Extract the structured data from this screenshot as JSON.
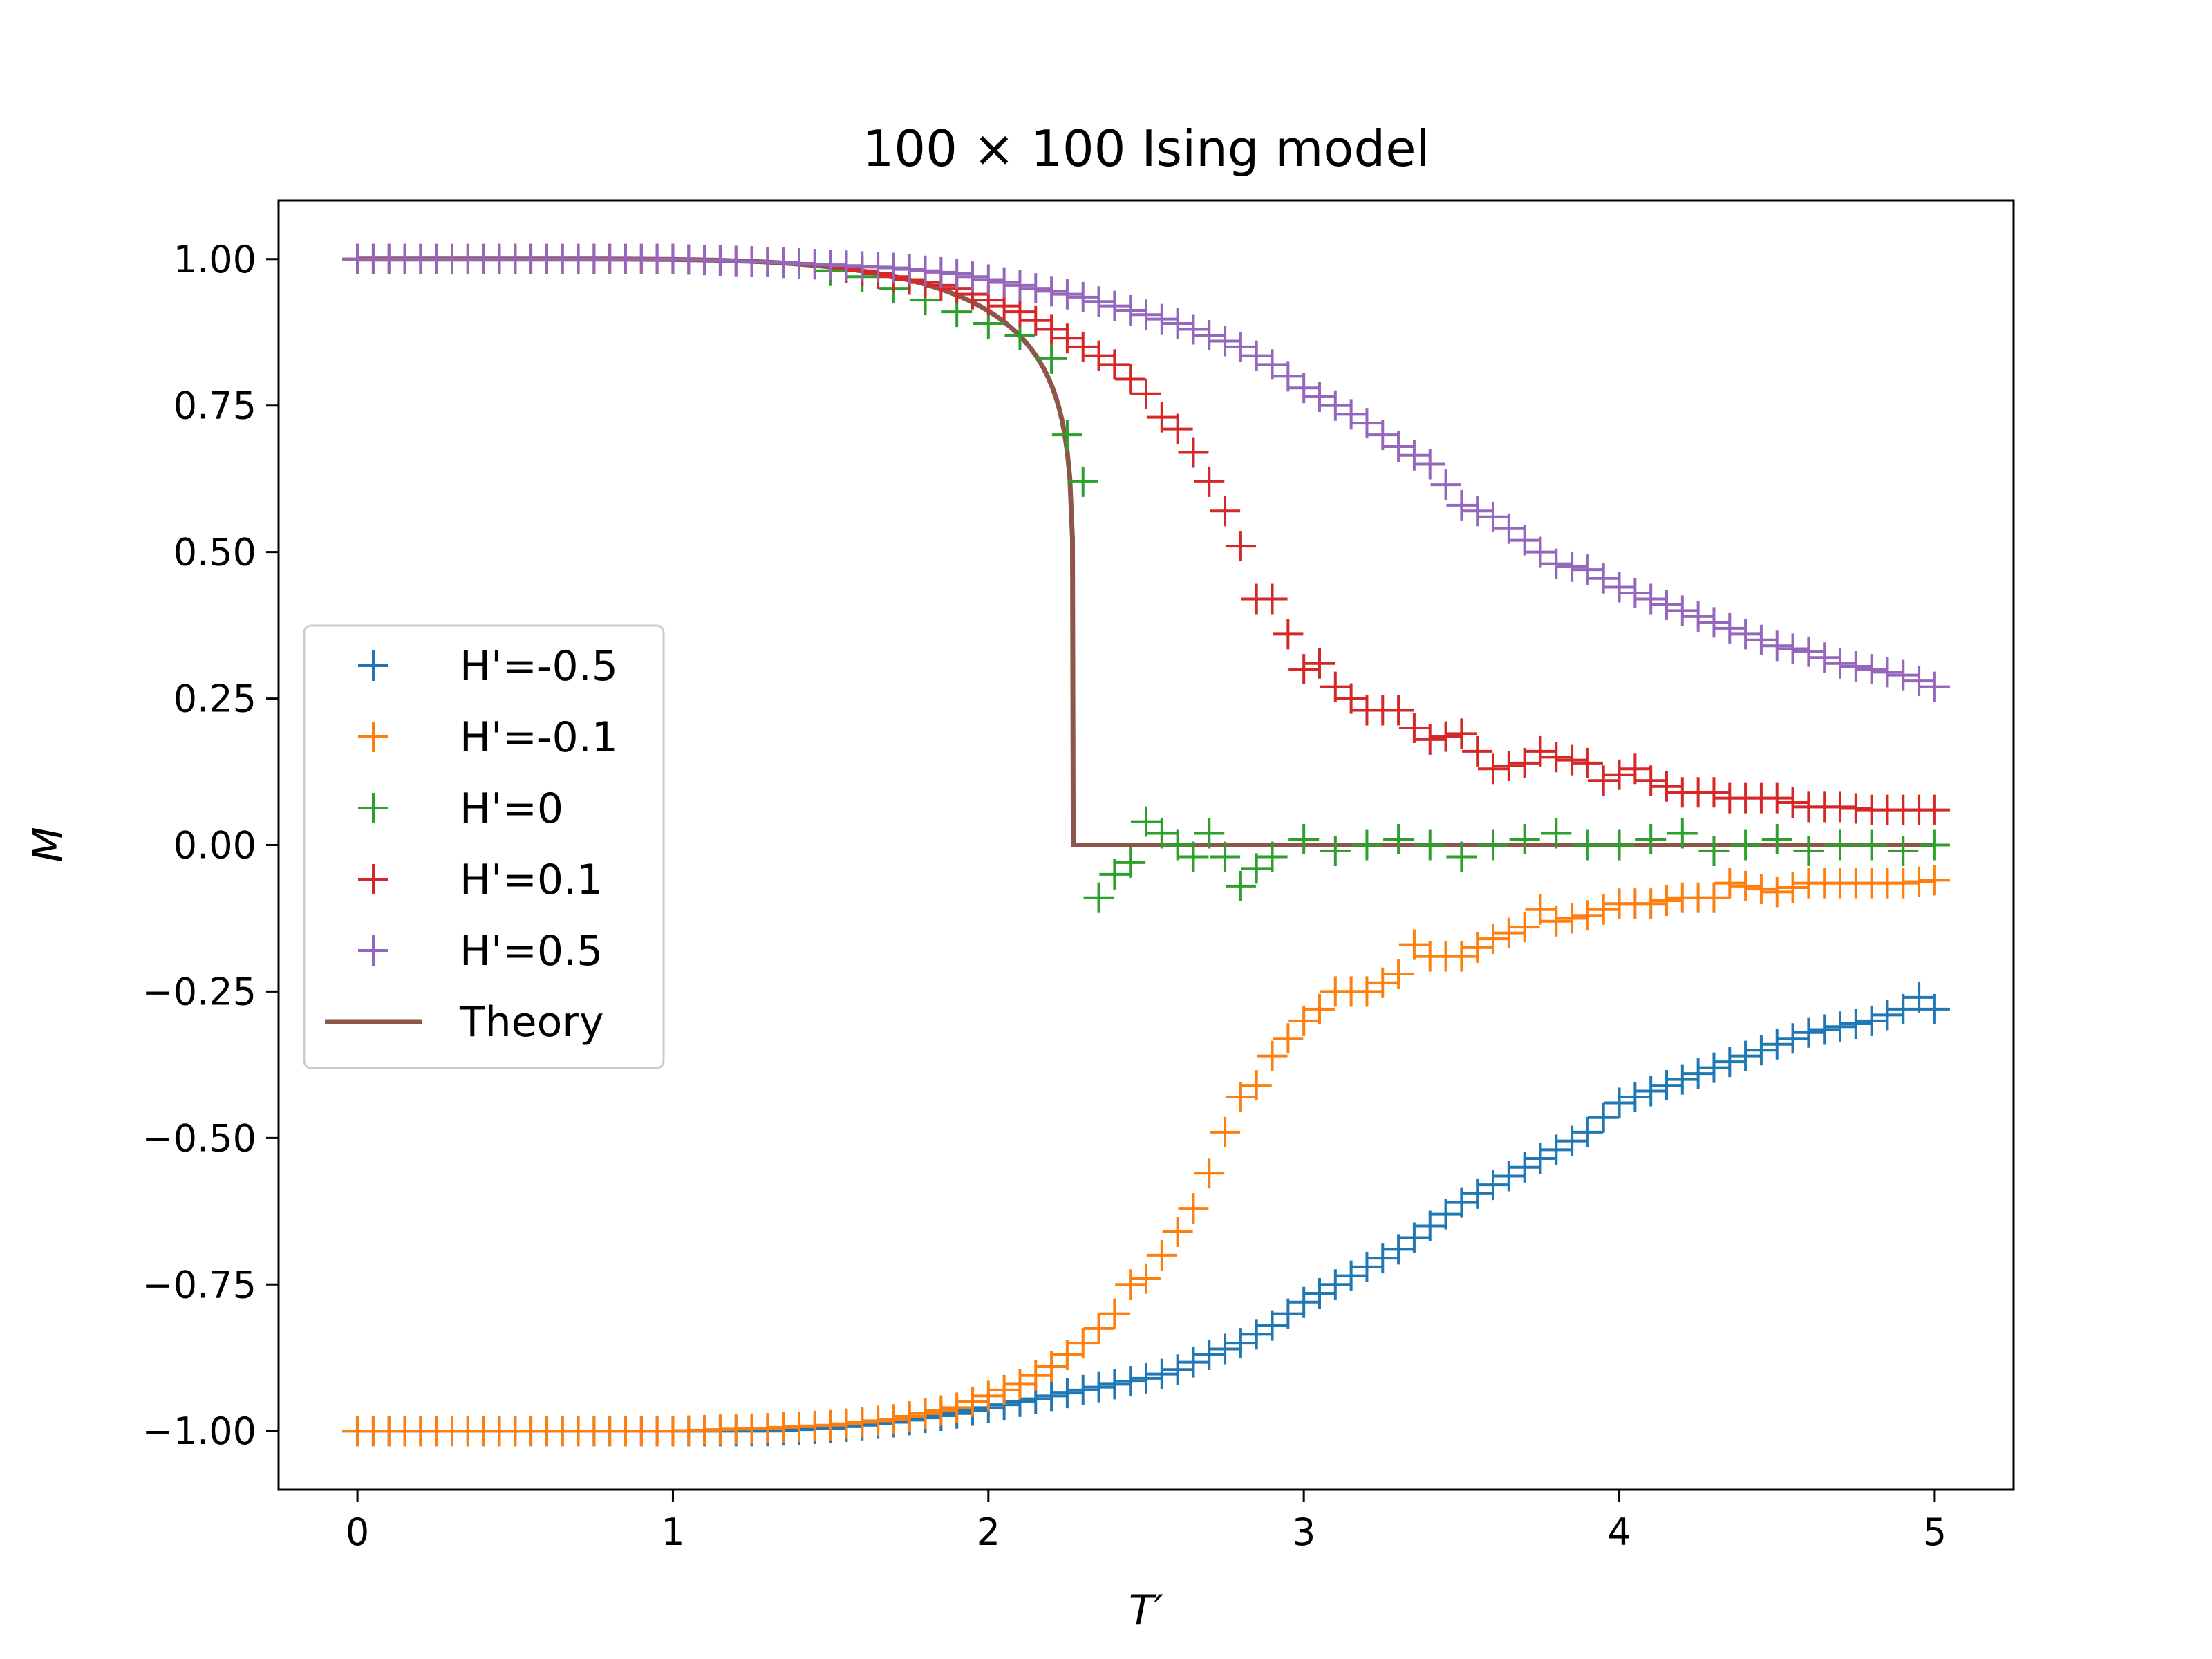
{
  "chart_data": {
    "type": "scatter",
    "title": "100 × 100 Ising model",
    "xlabel": "T′",
    "ylabel": "M",
    "xlim": [
      -0.25,
      5.25
    ],
    "ylim": [
      -1.1,
      1.1
    ],
    "xticks": [
      0,
      1,
      2,
      3,
      4,
      5
    ],
    "xtick_labels": [
      "0",
      "1",
      "2",
      "3",
      "4",
      "5"
    ],
    "yticks": [
      1.0,
      0.75,
      0.5,
      0.25,
      0.0,
      -0.25,
      -0.5,
      -0.75,
      -1.0
    ],
    "ytick_labels": [
      "1.00",
      "0.75",
      "0.50",
      "0.25",
      "0.00",
      "−0.25",
      "−0.50",
      "−0.75",
      "−1.00"
    ],
    "grid": false,
    "legend_position": "center-left",
    "series": [
      {
        "name": "H'=-0.5",
        "color": "#1f77b4",
        "marker": "plus",
        "points": [
          [
            0,
            -1.0
          ],
          [
            0.5,
            -1.0
          ],
          [
            1.0,
            -1.0
          ],
          [
            1.3,
            -1.0
          ],
          [
            1.5,
            -0.995
          ],
          [
            1.7,
            -0.985
          ],
          [
            1.9,
            -0.97
          ],
          [
            2.0,
            -0.96
          ],
          [
            2.1,
            -0.95
          ],
          [
            2.2,
            -0.94
          ],
          [
            2.3,
            -0.93
          ],
          [
            2.4,
            -0.92
          ],
          [
            2.5,
            -0.91
          ],
          [
            2.6,
            -0.895
          ],
          [
            2.7,
            -0.87
          ],
          [
            2.8,
            -0.85
          ],
          [
            2.9,
            -0.82
          ],
          [
            3.0,
            -0.78
          ],
          [
            3.1,
            -0.75
          ],
          [
            3.2,
            -0.72
          ],
          [
            3.3,
            -0.69
          ],
          [
            3.4,
            -0.65
          ],
          [
            3.5,
            -0.61
          ],
          [
            3.6,
            -0.58
          ],
          [
            3.7,
            -0.55
          ],
          [
            3.8,
            -0.52
          ],
          [
            3.9,
            -0.49
          ],
          [
            4.0,
            -0.44
          ],
          [
            4.1,
            -0.42
          ],
          [
            4.2,
            -0.4
          ],
          [
            4.3,
            -0.38
          ],
          [
            4.4,
            -0.36
          ],
          [
            4.5,
            -0.34
          ],
          [
            4.6,
            -0.32
          ],
          [
            4.7,
            -0.31
          ],
          [
            4.8,
            -0.3
          ],
          [
            4.9,
            -0.28
          ],
          [
            4.95,
            -0.26
          ],
          [
            5.0,
            -0.28
          ]
        ]
      },
      {
        "name": "H'=-0.1",
        "color": "#ff7f0e",
        "marker": "plus",
        "points": [
          [
            0,
            -1.0
          ],
          [
            0.5,
            -1.0
          ],
          [
            1.0,
            -1.0
          ],
          [
            1.3,
            -0.995
          ],
          [
            1.5,
            -0.99
          ],
          [
            1.7,
            -0.98
          ],
          [
            1.8,
            -0.97
          ],
          [
            1.9,
            -0.96
          ],
          [
            2.0,
            -0.94
          ],
          [
            2.1,
            -0.92
          ],
          [
            2.2,
            -0.89
          ],
          [
            2.3,
            -0.85
          ],
          [
            2.4,
            -0.8
          ],
          [
            2.45,
            -0.75
          ],
          [
            2.5,
            -0.74
          ],
          [
            2.55,
            -0.7
          ],
          [
            2.6,
            -0.66
          ],
          [
            2.65,
            -0.62
          ],
          [
            2.7,
            -0.56
          ],
          [
            2.75,
            -0.49
          ],
          [
            2.8,
            -0.43
          ],
          [
            2.85,
            -0.41
          ],
          [
            2.9,
            -0.36
          ],
          [
            2.95,
            -0.33
          ],
          [
            3.0,
            -0.3
          ],
          [
            3.05,
            -0.28
          ],
          [
            3.1,
            -0.25
          ],
          [
            3.2,
            -0.25
          ],
          [
            3.3,
            -0.22
          ],
          [
            3.35,
            -0.17
          ],
          [
            3.4,
            -0.19
          ],
          [
            3.5,
            -0.19
          ],
          [
            3.6,
            -0.16
          ],
          [
            3.7,
            -0.14
          ],
          [
            3.75,
            -0.11
          ],
          [
            3.8,
            -0.13
          ],
          [
            3.9,
            -0.12
          ],
          [
            4.0,
            -0.1
          ],
          [
            4.1,
            -0.1
          ],
          [
            4.2,
            -0.09
          ],
          [
            4.3,
            -0.09
          ],
          [
            4.35,
            -0.065
          ],
          [
            4.4,
            -0.07
          ],
          [
            4.5,
            -0.08
          ],
          [
            4.6,
            -0.065
          ],
          [
            4.7,
            -0.065
          ],
          [
            4.8,
            -0.065
          ],
          [
            4.9,
            -0.065
          ],
          [
            5.0,
            -0.06
          ]
        ]
      },
      {
        "name": "H'=0",
        "color": "#2ca02c",
        "marker": "plus",
        "points": [
          [
            0,
            1.0
          ],
          [
            0.5,
            1.0
          ],
          [
            1.0,
            1.0
          ],
          [
            1.3,
            0.995
          ],
          [
            1.5,
            0.98
          ],
          [
            1.6,
            0.97
          ],
          [
            1.7,
            0.95
          ],
          [
            1.8,
            0.93
          ],
          [
            1.9,
            0.91
          ],
          [
            2.0,
            0.89
          ],
          [
            2.1,
            0.87
          ],
          [
            2.2,
            0.83
          ],
          [
            2.25,
            0.7
          ],
          [
            2.3,
            0.62
          ],
          [
            2.35,
            -0.09
          ],
          [
            2.4,
            -0.05
          ],
          [
            2.45,
            -0.03
          ],
          [
            2.5,
            0.04
          ],
          [
            2.55,
            0.02
          ],
          [
            2.6,
            0.0
          ],
          [
            2.65,
            -0.02
          ],
          [
            2.7,
            0.02
          ],
          [
            2.75,
            -0.02
          ],
          [
            2.8,
            -0.07
          ],
          [
            2.85,
            -0.04
          ],
          [
            2.9,
            -0.02
          ],
          [
            3.0,
            0.01
          ],
          [
            3.1,
            -0.01
          ],
          [
            3.2,
            0.0
          ],
          [
            3.3,
            0.01
          ],
          [
            3.4,
            0.0
          ],
          [
            3.5,
            -0.02
          ],
          [
            3.6,
            0.0
          ],
          [
            3.7,
            0.01
          ],
          [
            3.8,
            0.02
          ],
          [
            3.9,
            0.0
          ],
          [
            4.0,
            0.0
          ],
          [
            4.1,
            0.01
          ],
          [
            4.2,
            0.02
          ],
          [
            4.3,
            -0.01
          ],
          [
            4.4,
            0.0
          ],
          [
            4.5,
            0.01
          ],
          [
            4.6,
            -0.01
          ],
          [
            4.7,
            0.0
          ],
          [
            4.8,
            0.0
          ],
          [
            4.9,
            -0.01
          ],
          [
            5.0,
            0.0
          ]
        ]
      },
      {
        "name": "H'=0.1",
        "color": "#d62728",
        "marker": "plus",
        "points": [
          [
            0,
            1.0
          ],
          [
            0.5,
            1.0
          ],
          [
            1.0,
            1.0
          ],
          [
            1.3,
            0.995
          ],
          [
            1.5,
            0.99
          ],
          [
            1.7,
            0.97
          ],
          [
            1.8,
            0.96
          ],
          [
            1.9,
            0.95
          ],
          [
            2.0,
            0.93
          ],
          [
            2.1,
            0.91
          ],
          [
            2.2,
            0.88
          ],
          [
            2.3,
            0.85
          ],
          [
            2.4,
            0.82
          ],
          [
            2.5,
            0.77
          ],
          [
            2.55,
            0.73
          ],
          [
            2.6,
            0.71
          ],
          [
            2.65,
            0.67
          ],
          [
            2.7,
            0.62
          ],
          [
            2.75,
            0.57
          ],
          [
            2.8,
            0.51
          ],
          [
            2.85,
            0.42
          ],
          [
            2.9,
            0.42
          ],
          [
            2.95,
            0.36
          ],
          [
            3.0,
            0.3
          ],
          [
            3.05,
            0.31
          ],
          [
            3.1,
            0.27
          ],
          [
            3.2,
            0.23
          ],
          [
            3.3,
            0.23
          ],
          [
            3.35,
            0.2
          ],
          [
            3.4,
            0.18
          ],
          [
            3.5,
            0.19
          ],
          [
            3.55,
            0.16
          ],
          [
            3.6,
            0.13
          ],
          [
            3.7,
            0.14
          ],
          [
            3.75,
            0.16
          ],
          [
            3.8,
            0.15
          ],
          [
            3.9,
            0.14
          ],
          [
            3.95,
            0.11
          ],
          [
            4.0,
            0.12
          ],
          [
            4.05,
            0.13
          ],
          [
            4.1,
            0.11
          ],
          [
            4.2,
            0.09
          ],
          [
            4.3,
            0.09
          ],
          [
            4.35,
            0.08
          ],
          [
            4.4,
            0.08
          ],
          [
            4.5,
            0.08
          ],
          [
            4.6,
            0.065
          ],
          [
            4.7,
            0.065
          ],
          [
            4.8,
            0.06
          ],
          [
            4.9,
            0.06
          ],
          [
            5.0,
            0.06
          ]
        ]
      },
      {
        "name": "H'=0.5",
        "color": "#9467bd",
        "marker": "plus",
        "points": [
          [
            0,
            1.0
          ],
          [
            0.5,
            1.0
          ],
          [
            1.0,
            1.0
          ],
          [
            1.3,
            0.995
          ],
          [
            1.5,
            0.99
          ],
          [
            1.7,
            0.985
          ],
          [
            1.9,
            0.975
          ],
          [
            2.0,
            0.965
          ],
          [
            2.1,
            0.955
          ],
          [
            2.2,
            0.945
          ],
          [
            2.3,
            0.935
          ],
          [
            2.4,
            0.92
          ],
          [
            2.5,
            0.905
          ],
          [
            2.6,
            0.89
          ],
          [
            2.7,
            0.87
          ],
          [
            2.8,
            0.85
          ],
          [
            2.9,
            0.82
          ],
          [
            3.0,
            0.78
          ],
          [
            3.1,
            0.75
          ],
          [
            3.2,
            0.72
          ],
          [
            3.3,
            0.68
          ],
          [
            3.4,
            0.65
          ],
          [
            3.5,
            0.58
          ],
          [
            3.6,
            0.56
          ],
          [
            3.7,
            0.52
          ],
          [
            3.8,
            0.48
          ],
          [
            3.9,
            0.47
          ],
          [
            4.0,
            0.44
          ],
          [
            4.1,
            0.42
          ],
          [
            4.2,
            0.4
          ],
          [
            4.3,
            0.38
          ],
          [
            4.4,
            0.36
          ],
          [
            4.5,
            0.34
          ],
          [
            4.6,
            0.33
          ],
          [
            4.7,
            0.31
          ],
          [
            4.8,
            0.3
          ],
          [
            4.9,
            0.29
          ],
          [
            5.0,
            0.27
          ]
        ]
      },
      {
        "name": "Theory",
        "color": "#8c564b",
        "marker": "line",
        "critical_temperature": 2.269
      }
    ]
  }
}
